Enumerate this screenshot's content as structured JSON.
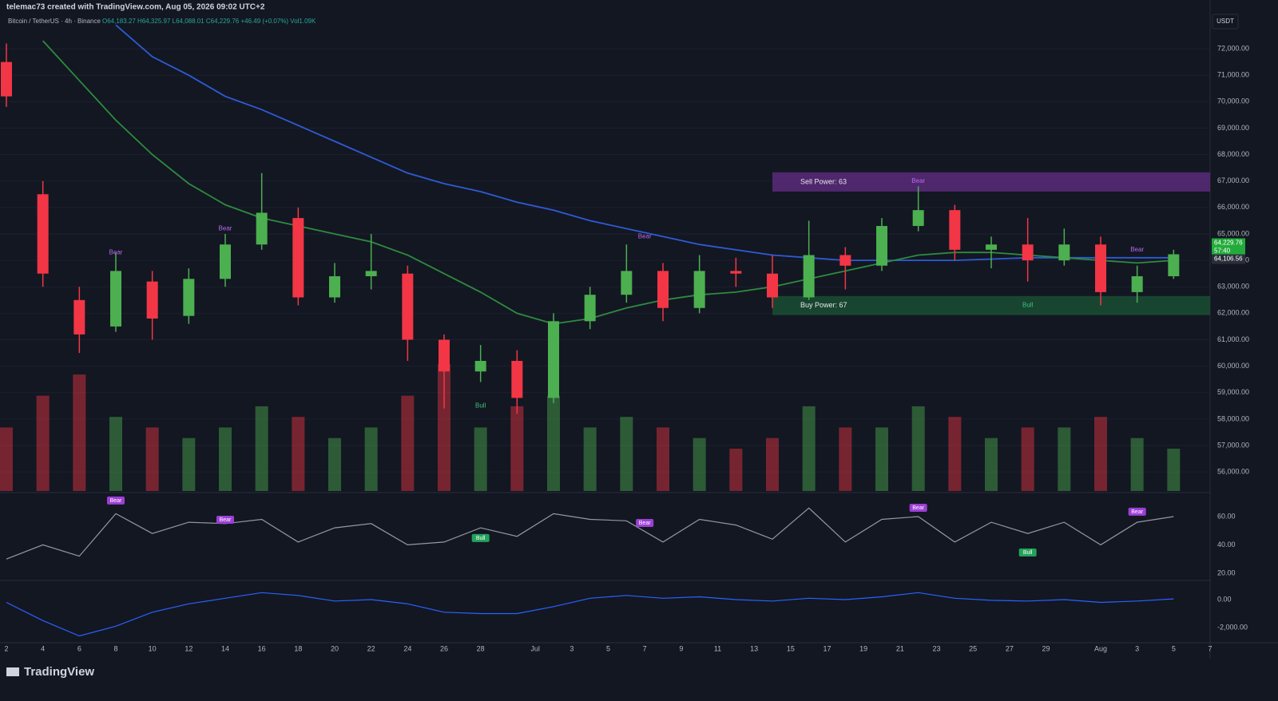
{
  "header": {
    "credit": "telemac73 created with TradingView.com, Aug 05, 2026 09:02 UTC+2",
    "symbol": "Bitcoin / TetherUS · 4h · Binance",
    "ohlc": "O64,183.27 H64,325.97 L64,088.01 C64,229.76 +46.49 (+0.07%) Vol1.09K",
    "currency": "USDT",
    "brand": "TradingView"
  },
  "chart_data": {
    "type": "candlestick",
    "up_color": "#4caf50",
    "down_color": "#f23645",
    "grid": true,
    "x": [
      "2026-06-02",
      "2026-06-04",
      "2026-06-06",
      "2026-06-08",
      "2026-06-10",
      "2026-06-12",
      "2026-06-14",
      "2026-06-16",
      "2026-06-18",
      "2026-06-20",
      "2026-06-22",
      "2026-06-24",
      "2026-06-26",
      "2026-06-28",
      "2026-06-30",
      "2026-07-02",
      "2026-07-04",
      "2026-07-06",
      "2026-07-08",
      "2026-07-10",
      "2026-07-12",
      "2026-07-14",
      "2026-07-16",
      "2026-07-18",
      "2026-07-20",
      "2026-07-22",
      "2026-07-24",
      "2026-07-26",
      "2026-07-28",
      "2026-07-30",
      "2026-08-01",
      "2026-08-03",
      "2026-08-05"
    ],
    "open": [
      71500,
      66500,
      62500,
      61500,
      63200,
      61900,
      63300,
      64600,
      65600,
      62600,
      63400,
      63500,
      61000,
      59800,
      60200,
      58800,
      61700,
      62700,
      63600,
      62200,
      63600,
      63500,
      62600,
      64200,
      63800,
      65300,
      65900,
      64400,
      64600,
      64000,
      64600,
      62800,
      63400
    ],
    "high": [
      72200,
      67000,
      63000,
      64300,
      63600,
      63700,
      65000,
      67300,
      66000,
      63900,
      65000,
      63800,
      61200,
      60800,
      60600,
      62000,
      63000,
      64600,
      63900,
      64200,
      64100,
      64200,
      65500,
      64500,
      65600,
      66800,
      66100,
      64900,
      65600,
      65200,
      64900,
      63800,
      64400
    ],
    "low": [
      69800,
      63000,
      60500,
      61300,
      61000,
      61600,
      63000,
      64400,
      62300,
      62400,
      62900,
      60200,
      58400,
      59400,
      58200,
      58600,
      61400,
      62400,
      61700,
      62000,
      63000,
      62200,
      62500,
      62900,
      63600,
      65100,
      64000,
      63700,
      63200,
      63800,
      62300,
      62400,
      63300
    ],
    "close": [
      70200,
      63500,
      61200,
      63600,
      61800,
      63300,
      64600,
      65800,
      62600,
      63400,
      63600,
      61000,
      59800,
      60200,
      58800,
      61700,
      62700,
      63600,
      62200,
      63600,
      63500,
      62600,
      64200,
      63800,
      65300,
      65900,
      64400,
      64600,
      64000,
      64600,
      62800,
      63400,
      64230
    ],
    "volume": [
      6,
      9,
      11,
      7,
      6,
      5,
      6,
      8,
      7,
      5,
      6,
      9,
      12,
      6,
      8,
      9,
      6,
      7,
      6,
      5,
      4,
      5,
      8,
      6,
      6,
      8,
      7,
      5,
      6,
      6,
      7,
      5,
      4
    ],
    "volume_ylim": [
      0,
      45
    ],
    "lines": [
      {
        "color": "#2e5bd6",
        "values": [
          null,
          null,
          null,
          72900,
          71700,
          71000,
          70200,
          69700,
          69100,
          68500,
          67900,
          67300,
          66900,
          66600,
          66200,
          65900,
          65500,
          65200,
          64900,
          64600,
          64400,
          64200,
          64100,
          64000,
          64000,
          64000,
          64000,
          64050,
          64100,
          64100,
          64100,
          64100,
          64100
        ]
      },
      {
        "color": "#2e8b3e",
        "values": [
          null,
          72300,
          70800,
          69300,
          68000,
          66900,
          66100,
          65600,
          65300,
          65000,
          64700,
          64200,
          63500,
          62800,
          62000,
          61600,
          61800,
          62200,
          62500,
          62700,
          62800,
          63000,
          63300,
          63600,
          63900,
          64200,
          64300,
          64300,
          64200,
          64100,
          64000,
          63900,
          64000
        ]
      }
    ],
    "xlim": [
      "2026-06-02",
      "2026-08-07"
    ],
    "xticks": [
      {
        "value": "2026-06-02",
        "label": "2"
      },
      {
        "value": "2026-06-04",
        "label": "4"
      },
      {
        "value": "2026-06-06",
        "label": "6"
      },
      {
        "value": "2026-06-08",
        "label": "8"
      },
      {
        "value": "2026-06-10",
        "label": "10"
      },
      {
        "value": "2026-06-12",
        "label": "12"
      },
      {
        "value": "2026-06-14",
        "label": "14"
      },
      {
        "value": "2026-06-16",
        "label": "16"
      },
      {
        "value": "2026-06-18",
        "label": "18"
      },
      {
        "value": "2026-06-20",
        "label": "20"
      },
      {
        "value": "2026-06-22",
        "label": "22"
      },
      {
        "value": "2026-06-24",
        "label": "24"
      },
      {
        "value": "2026-06-26",
        "label": "26"
      },
      {
        "value": "2026-06-28",
        "label": "28"
      },
      {
        "value": "2026-07-01",
        "label": "Jul"
      },
      {
        "value": "2026-07-03",
        "label": "3"
      },
      {
        "value": "2026-07-05",
        "label": "5"
      },
      {
        "value": "2026-07-07",
        "label": "7"
      },
      {
        "value": "2026-07-09",
        "label": "9"
      },
      {
        "value": "2026-07-11",
        "label": "11"
      },
      {
        "value": "2026-07-13",
        "label": "13"
      },
      {
        "value": "2026-07-15",
        "label": "15"
      },
      {
        "value": "2026-07-17",
        "label": "17"
      },
      {
        "value": "2026-07-19",
        "label": "19"
      },
      {
        "value": "2026-07-21",
        "label": "21"
      },
      {
        "value": "2026-07-23",
        "label": "23"
      },
      {
        "value": "2026-07-25",
        "label": "25"
      },
      {
        "value": "2026-07-27",
        "label": "27"
      },
      {
        "value": "2026-07-29",
        "label": "29"
      },
      {
        "value": "2026-08-01",
        "label": "Aug"
      },
      {
        "value": "2026-08-03",
        "label": "3"
      },
      {
        "value": "2026-08-05",
        "label": "5"
      },
      {
        "value": "2026-08-07",
        "label": "7"
      }
    ],
    "ylim": [
      55280,
      73300
    ],
    "yticks": [
      {
        "value": 56000,
        "label": "56,000.00"
      },
      {
        "value": 57000,
        "label": "57,000.00"
      },
      {
        "value": 58000,
        "label": "58,000.00"
      },
      {
        "value": 59000,
        "label": "59,000.00"
      },
      {
        "value": 60000,
        "label": "60,000.00"
      },
      {
        "value": 61000,
        "label": "61,000.00"
      },
      {
        "value": 62000,
        "label": "62,000.00"
      },
      {
        "value": 63000,
        "label": "63,000.00"
      },
      {
        "value": 64000,
        "label": "64,000.00"
      },
      {
        "value": 65000,
        "label": "65,000.00"
      },
      {
        "value": 66000,
        "label": "66,000.00"
      },
      {
        "value": 67000,
        "label": "67,000.00"
      },
      {
        "value": 68000,
        "label": "68,000.00"
      },
      {
        "value": 69000,
        "label": "69,000.00"
      },
      {
        "value": 70000,
        "label": "70,000.00"
      },
      {
        "value": 71000,
        "label": "71,000.00"
      },
      {
        "value": 72000,
        "label": "72,000.00"
      }
    ],
    "price_labels": [
      {
        "value": 64229.76,
        "label": "64,229.76",
        "color": "#22ab3a"
      },
      {
        "value": 64106.56,
        "label": "64,106.56",
        "color": "#2a2e39"
      }
    ],
    "countdown": "57:40",
    "zones": [
      {
        "label": "Sell Power: 63",
        "from": "2026-07-14",
        "range": [
          66600,
          67330
        ],
        "color": "#5b2a7a"
      },
      {
        "label": "Buy Power: 67",
        "from": "2026-07-14",
        "range": [
          61930,
          62650
        ],
        "color": "#1a4d32"
      }
    ],
    "annotations": [
      {
        "text": "Bear",
        "x": "2026-06-08",
        "y": 64300,
        "color": "#b968f0"
      },
      {
        "text": "Bear",
        "x": "2026-06-14",
        "y": 65200,
        "color": "#b968f0"
      },
      {
        "text": "Bear",
        "x": "2026-07-07",
        "y": 64900,
        "color": "#b968f0"
      },
      {
        "text": "Bear",
        "x": "2026-07-22",
        "y": 67000,
        "color": "#b968f0"
      },
      {
        "text": "Bear",
        "x": "2026-08-03",
        "y": 64400,
        "color": "#b968f0"
      },
      {
        "text": "Bull",
        "x": "2026-06-28",
        "y": 58500,
        "color": "#3fc37a"
      },
      {
        "text": "Bull",
        "x": "2026-07-28",
        "y": 62300,
        "color": "#3fc37a"
      }
    ],
    "rsi": {
      "color": "#9598a1",
      "ylim": [
        16,
        75.2
      ],
      "yticks": [
        {
          "value": 60,
          "label": "60.00"
        },
        {
          "value": 40,
          "label": "40.00"
        },
        {
          "value": 20,
          "label": "20.00"
        }
      ],
      "values": [
        30,
        40,
        32,
        62,
        48,
        56,
        55,
        58,
        42,
        52,
        55,
        40,
        42,
        52,
        46,
        62,
        58,
        57,
        42,
        58,
        54,
        44,
        66,
        42,
        58,
        60,
        42,
        56,
        48,
        56,
        40,
        56,
        60
      ],
      "annotations": [
        {
          "text": "Bear",
          "x": "2026-06-08",
          "y": 71.3,
          "color": "#9c3fd6"
        },
        {
          "text": "Bear",
          "x": "2026-06-14",
          "y": 57.7,
          "color": "#9c3fd6"
        },
        {
          "text": "Bull",
          "x": "2026-06-28",
          "y": 44.8,
          "color": "#22a25a"
        },
        {
          "text": "Bear",
          "x": "2026-07-07",
          "y": 55.5,
          "color": "#9c3fd6"
        },
        {
          "text": "Bear",
          "x": "2026-07-22",
          "y": 66.2,
          "color": "#9c3fd6"
        },
        {
          "text": "Bull",
          "x": "2026-07-28",
          "y": 34.6,
          "color": "#22a25a"
        },
        {
          "text": "Bear",
          "x": "2026-08-03",
          "y": 63.4,
          "color": "#9c3fd6"
        }
      ]
    },
    "macd": {
      "color": "#2962ff",
      "ylim": [
        -2970,
        1200
      ],
      "yticks": [
        {
          "value": 0,
          "label": "0.00"
        },
        {
          "value": -2000,
          "label": "-2,000.00"
        }
      ],
      "values": [
        -200,
        -1500,
        -2600,
        -1900,
        -900,
        -300,
        100,
        500,
        300,
        -100,
        0,
        -300,
        -900,
        -1000,
        -1000,
        -500,
        100,
        300,
        100,
        200,
        0,
        -100,
        100,
        0,
        200,
        500,
        100,
        -50,
        -100,
        0,
        -200,
        -100,
        50
      ]
    }
  }
}
